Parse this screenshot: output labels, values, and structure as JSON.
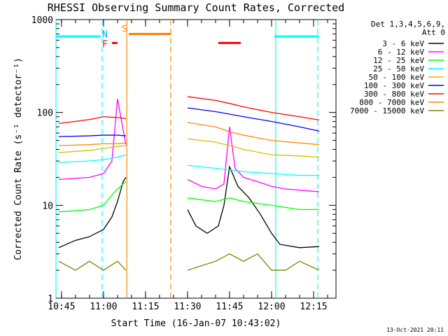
{
  "chart_data": {
    "type": "line",
    "title": "RHESSI Observing Summary Count Rates, Corrected",
    "xlabel": "Start Time (16-Jan-07 10:43:02)",
    "ylabel": "Corrected Count Rate (s⁻¹ detector⁻¹)",
    "y_scale": "log",
    "ylim": [
      1,
      1000
    ],
    "y_ticks": [
      1,
      10,
      100,
      1000
    ],
    "y_tick_labels": [
      "1",
      "10",
      "100",
      "1000"
    ],
    "xlim": [
      "10:43:02",
      "12:23:00"
    ],
    "x_ticks": [
      "10:45",
      "11:00",
      "11:15",
      "11:30",
      "11:45",
      "12:00",
      "12:15"
    ],
    "legend_header": [
      "Det 1,3,4,5,6,9,",
      "Att 0"
    ],
    "legend_position": "outside-right",
    "footer": "13-Oct-2021 20:11",
    "series": [
      {
        "name": "3 - 6 keV",
        "color": "#000000",
        "x": [
          "10:44",
          "10:50",
          "10:55",
          "11:00",
          "11:03",
          "11:05",
          "11:07",
          "11:08",
          "11:30",
          "11:33",
          "11:37",
          "11:41",
          "11:43",
          "11:45",
          "11:48",
          "11:52",
          "11:56",
          "12:00",
          "12:03",
          "12:10",
          "12:17"
        ],
        "values": [
          3.5,
          4.2,
          4.6,
          5.5,
          7.5,
          11,
          18,
          20,
          9,
          6,
          5,
          6,
          10,
          26,
          16,
          12,
          8,
          5,
          3.8,
          3.5,
          3.6
        ]
      },
      {
        "name": "6 - 12 keV",
        "color": "#ff00ff",
        "x": [
          "10:44",
          "10:55",
          "11:00",
          "11:03",
          "11:05",
          "11:07",
          "11:08",
          "11:30",
          "11:35",
          "11:40",
          "11:43",
          "11:45",
          "11:47",
          "11:50",
          "11:55",
          "12:00",
          "12:05",
          "12:17"
        ],
        "values": [
          19,
          20,
          22,
          30,
          140,
          65,
          45,
          19,
          16,
          15,
          17,
          70,
          25,
          20,
          18,
          16,
          15,
          14
        ]
      },
      {
        "name": "12 - 25 keV",
        "color": "#00ff00",
        "x": [
          "10:44",
          "10:55",
          "11:00",
          "11:04",
          "11:07",
          "11:08",
          "11:30",
          "11:40",
          "11:45",
          "11:50",
          "12:00",
          "12:10",
          "12:17"
        ],
        "values": [
          8.5,
          9,
          10,
          14,
          17,
          18,
          12,
          11,
          12,
          11,
          10,
          9,
          9
        ]
      },
      {
        "name": "25 - 50 keV",
        "color": "#00ffff",
        "x": [
          "10:44",
          "10:55",
          "11:00",
          "11:05",
          "11:08",
          "11:30",
          "11:40",
          "11:45",
          "11:50",
          "12:00",
          "12:10",
          "12:17"
        ],
        "values": [
          29,
          30,
          31,
          33,
          35,
          27,
          25,
          24,
          23,
          22,
          21,
          21
        ]
      },
      {
        "name": "50 - 100 keV",
        "color": "#ddbb00",
        "x": [
          "10:44",
          "10:55",
          "11:00",
          "11:05",
          "11:08",
          "11:30",
          "11:40",
          "11:45",
          "11:50",
          "12:00",
          "12:10",
          "12:17"
        ],
        "values": [
          37,
          39,
          41,
          43,
          44,
          52,
          48,
          44,
          40,
          35,
          34,
          33
        ]
      },
      {
        "name": "100 - 300 keV",
        "color": "#0000ff",
        "x": [
          "10:44",
          "10:55",
          "11:00",
          "11:05",
          "11:08",
          "11:30",
          "11:40",
          "11:45",
          "11:50",
          "12:00",
          "12:10",
          "12:17"
        ],
        "values": [
          55,
          56,
          57,
          57,
          56,
          112,
          102,
          96,
          90,
          80,
          70,
          63
        ]
      },
      {
        "name": "300 - 800 keV",
        "color": "#ff0000",
        "x": [
          "10:44",
          "10:55",
          "11:00",
          "11:05",
          "11:08",
          "11:30",
          "11:40",
          "11:45",
          "11:50",
          "12:00",
          "12:10",
          "12:17"
        ],
        "values": [
          76,
          84,
          90,
          88,
          86,
          148,
          135,
          125,
          115,
          100,
          90,
          83
        ]
      },
      {
        "name": "800 - 7000 keV",
        "color": "#ff8800",
        "x": [
          "10:44",
          "10:55",
          "11:00",
          "11:05",
          "11:08",
          "11:30",
          "11:40",
          "11:45",
          "11:50",
          "12:00",
          "12:10",
          "12:17"
        ],
        "values": [
          44,
          45,
          46,
          46,
          47,
          78,
          70,
          62,
          57,
          50,
          47,
          45
        ]
      },
      {
        "name": "7000 - 15000 keV",
        "color": "#808000",
        "x": [
          "10:44",
          "10:50",
          "10:55",
          "11:00",
          "11:05",
          "11:08",
          "11:30",
          "11:40",
          "11:45",
          "11:50",
          "11:55",
          "12:00",
          "12:05",
          "12:10",
          "12:17"
        ],
        "values": [
          2.5,
          2,
          2.5,
          2,
          2.5,
          2,
          2,
          2.5,
          3,
          2.5,
          3,
          2,
          2,
          2.5,
          2
        ]
      }
    ],
    "flag_bars": [
      {
        "color": "#00ffff",
        "x": [
          "10:43:02",
          "10:59:00"
        ],
        "y": 660
      },
      {
        "color": "#00ffff",
        "x": [
          "12:01:00",
          "12:17:00"
        ],
        "y": 660
      },
      {
        "color": "#ff0000",
        "x": [
          "11:03:00",
          "11:05:00"
        ],
        "y": 560
      },
      {
        "color": "#ff8000",
        "x": [
          "11:09:00",
          "11:24:00"
        ],
        "y": 700
      },
      {
        "color": "#ff0000",
        "x": [
          "11:41:00",
          "11:49:00"
        ],
        "y": 560
      }
    ],
    "flag_labels": [
      {
        "text": "N",
        "color": "#00aaff",
        "x": "11:00:30",
        "y": 690
      },
      {
        "text": "F",
        "color": "#ff0000",
        "x": "11:00:30",
        "y": 540
      },
      {
        "text": "S",
        "color": "#ff8800",
        "x": "11:07:30",
        "y": 790
      }
    ],
    "vertical_markers": [
      {
        "x": "10:43:02",
        "color": "#00ffff",
        "style": "solid"
      },
      {
        "x": "10:59:30",
        "color": "#00ffff",
        "style": "dashed"
      },
      {
        "x": "11:08:20",
        "color": "#ff8800",
        "style": "solid"
      },
      {
        "x": "11:24:00",
        "color": "#ff8800",
        "style": "dashed"
      },
      {
        "x": "12:01:30",
        "color": "#00ffff",
        "style": "solid"
      },
      {
        "x": "12:16:30",
        "color": "#00ffff",
        "style": "dashed"
      }
    ],
    "gaps": [
      [
        "11:08:20",
        "11:29:30"
      ]
    ]
  }
}
